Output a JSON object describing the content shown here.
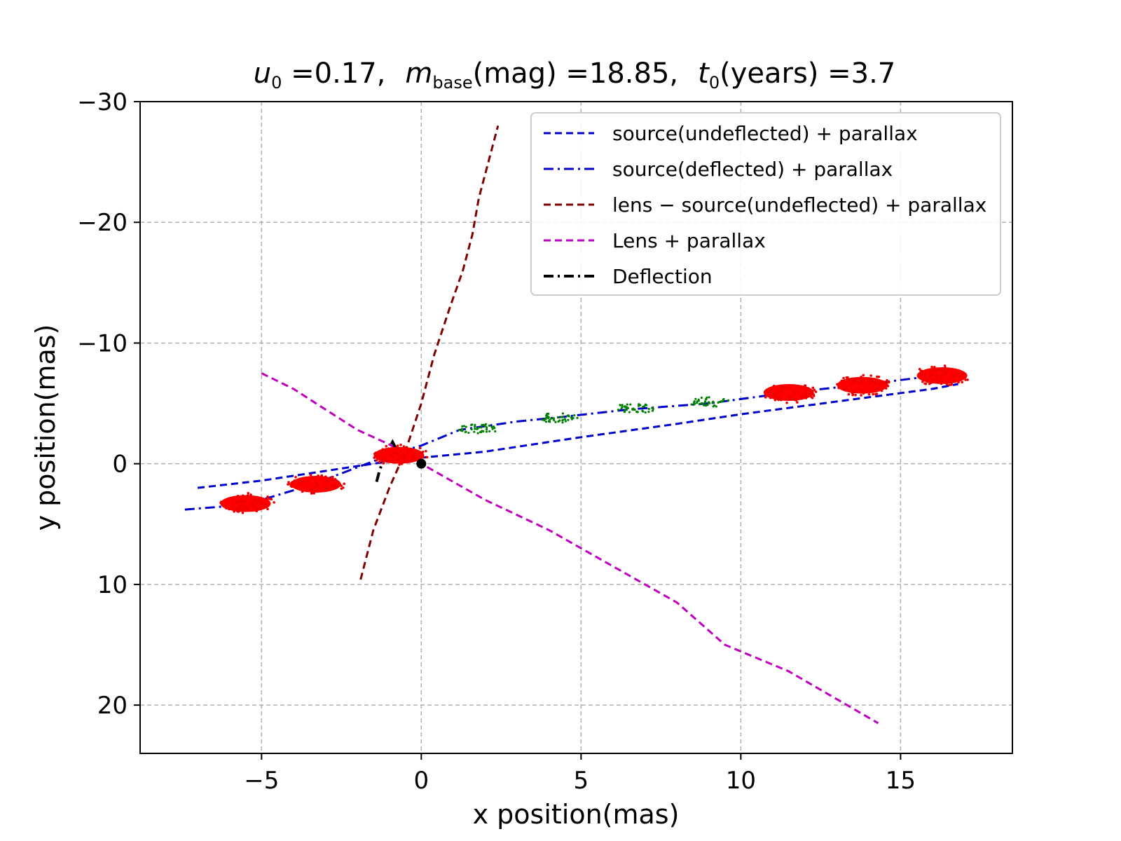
{
  "chart_data": {
    "type": "line",
    "title": {
      "u0_symbol": "u",
      "u0_sub": "0",
      "u0_value": " =0.17,",
      "mbase_symbol": "m",
      "mbase_sub": "base",
      "mbase_rest": "(mag) =18.85,",
      "t0_symbol": "t",
      "t0_sub": "0",
      "t0_rest": "(years) =3.7"
    },
    "xlabel": "x position(mas)",
    "ylabel": "y position(mas)",
    "xlim": [
      -8.8,
      18.5
    ],
    "ylim": [
      -30.0,
      24.0
    ],
    "y_inverted": true,
    "grid": true,
    "x_ticks": [
      -5,
      0,
      5,
      10,
      15
    ],
    "x_tick_labels": [
      "−5",
      "0",
      "5",
      "10",
      "15"
    ],
    "y_ticks": [
      -30,
      -20,
      -10,
      0,
      10,
      20
    ],
    "y_tick_labels": [
      "−30",
      "−20",
      "−10",
      "0",
      "10",
      "20"
    ],
    "legend_position": "top-right",
    "series": [
      {
        "name": "source(undeflected) + parallax",
        "color": "#0000cc",
        "style": "dashed",
        "points": [
          [
            -7.0,
            2.0
          ],
          [
            -5.0,
            1.4
          ],
          [
            -3.0,
            0.6
          ],
          [
            -1.0,
            -0.2
          ],
          [
            0.0,
            -0.5
          ],
          [
            2.0,
            -1.0
          ],
          [
            5.0,
            -2.2
          ],
          [
            8.0,
            -3.3
          ],
          [
            10.0,
            -4.1
          ],
          [
            12.0,
            -4.8
          ],
          [
            14.0,
            -5.5
          ],
          [
            16.0,
            -6.2
          ],
          [
            16.8,
            -6.6
          ]
        ]
      },
      {
        "name": "source(deflected) + parallax",
        "color": "#0000cc",
        "style": "dashdot",
        "points": [
          [
            -7.4,
            3.8
          ],
          [
            -5.5,
            3.4
          ],
          [
            -3.5,
            1.8
          ],
          [
            -1.5,
            -0.2
          ],
          [
            -0.8,
            -0.9
          ],
          [
            0.0,
            -1.5
          ],
          [
            1.2,
            -2.8
          ],
          [
            3.0,
            -3.5
          ],
          [
            4.5,
            -3.9
          ],
          [
            6.5,
            -4.5
          ],
          [
            9.0,
            -5.0
          ],
          [
            11.5,
            -5.9
          ],
          [
            14.0,
            -6.6
          ],
          [
            16.7,
            -7.5
          ]
        ]
      },
      {
        "name": "lens − source(undeflected) + parallax",
        "color": "#800000",
        "style": "dashed",
        "points": [
          [
            -1.9,
            9.6
          ],
          [
            -1.5,
            5.5
          ],
          [
            -1.0,
            2.0
          ],
          [
            -0.5,
            -1.0
          ],
          [
            0.0,
            -5.0
          ],
          [
            0.4,
            -9.0
          ],
          [
            0.9,
            -13.0
          ],
          [
            1.3,
            -16.0
          ],
          [
            1.6,
            -19.0
          ],
          [
            1.8,
            -22.0
          ],
          [
            2.1,
            -25.0
          ],
          [
            2.4,
            -28.0
          ]
        ]
      },
      {
        "name": "Lens + parallax",
        "color": "#bf00bf",
        "style": "dashed",
        "points": [
          [
            -5.0,
            -7.5
          ],
          [
            -4.0,
            -6.2
          ],
          [
            -3.0,
            -4.5
          ],
          [
            -2.0,
            -2.8
          ],
          [
            -1.0,
            -1.6
          ],
          [
            0.0,
            0.0
          ],
          [
            2.0,
            3.0
          ],
          [
            4.0,
            5.5
          ],
          [
            6.0,
            8.5
          ],
          [
            8.0,
            11.5
          ],
          [
            9.5,
            15.0
          ],
          [
            11.5,
            17.2
          ],
          [
            14.3,
            21.5
          ]
        ]
      },
      {
        "name": "Deflection",
        "color": "#000000",
        "style": "dashdot",
        "points": [
          [
            -1.4,
            1.5
          ],
          [
            -1.3,
            0.5
          ],
          [
            -1.1,
            -0.8
          ],
          [
            -0.9,
            -1.8
          ],
          [
            -0.8,
            -1.3
          ]
        ]
      }
    ],
    "lens_marker": {
      "x": 0.0,
      "y": 0.0,
      "color": "#000000"
    },
    "red_clusters": [
      [
        -5.5,
        3.3
      ],
      [
        -3.3,
        1.7
      ],
      [
        -0.7,
        -0.7
      ],
      [
        11.5,
        -5.9
      ],
      [
        13.8,
        -6.5
      ],
      [
        16.3,
        -7.3
      ]
    ],
    "green_clusters": [
      [
        1.8,
        -2.9
      ],
      [
        4.3,
        -3.8
      ],
      [
        6.7,
        -4.6
      ],
      [
        9.0,
        -5.1
      ]
    ]
  }
}
